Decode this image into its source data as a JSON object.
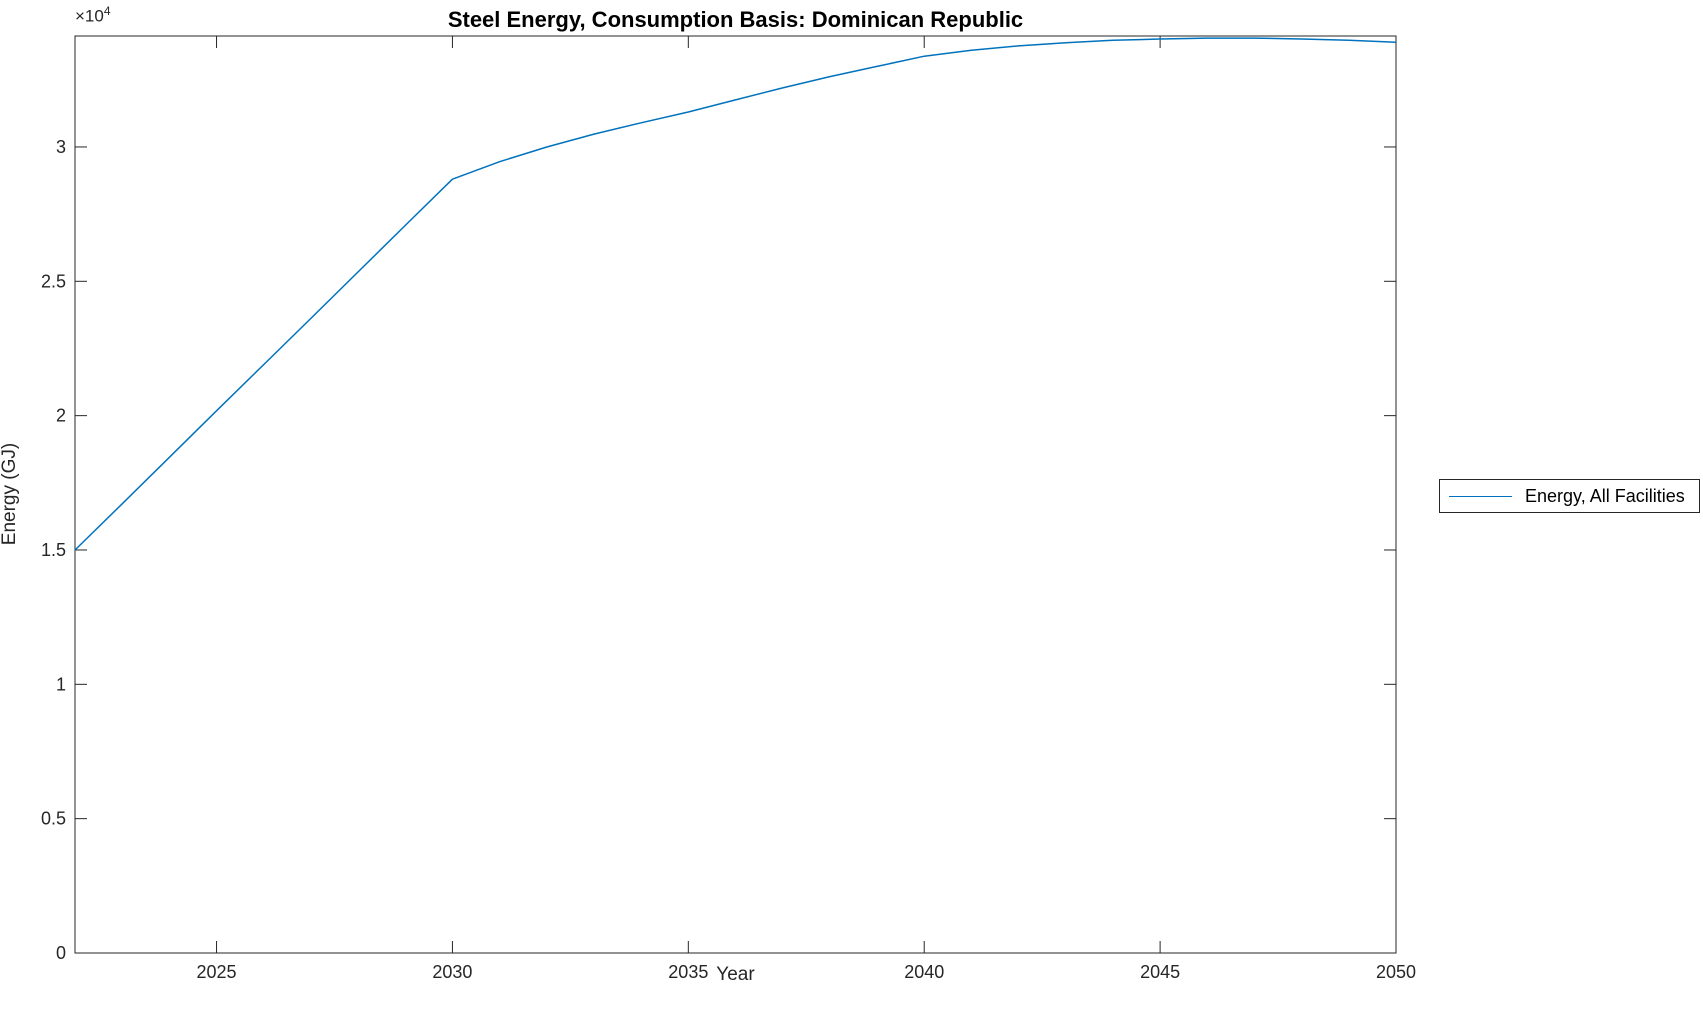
{
  "figure": {
    "title": "Steel Energy, Consumption Basis: Dominican Republic",
    "xlabel": "Year",
    "ylabel": "Energy (GJ)",
    "scale_prefix": "×10",
    "scale_exponent": "4"
  },
  "legend": {
    "entries": [
      {
        "label": "Energy, All Facilities",
        "color": "#0072BD"
      }
    ]
  },
  "colors": {
    "line": "#0072BD",
    "axis": "#262626",
    "background": "#ffffff"
  },
  "chart_data": {
    "type": "line",
    "title": "Steel Energy, Consumption Basis: Dominican Republic",
    "xlabel": "Year",
    "ylabel": "Energy (GJ)",
    "y_scale_note": "y tick labels are in units of 10^4 GJ",
    "xlim": [
      2022,
      2050
    ],
    "ylim": [
      0,
      34130
    ],
    "grid": false,
    "legend_position": "right-outside",
    "x": [
      2022,
      2023,
      2024,
      2025,
      2026,
      2027,
      2028,
      2029,
      2030,
      2031,
      2032,
      2033,
      2034,
      2035,
      2036,
      2037,
      2038,
      2039,
      2040,
      2041,
      2042,
      2043,
      2044,
      2045,
      2046,
      2047,
      2048,
      2049,
      2050
    ],
    "series": [
      {
        "name": "Energy, All Facilities",
        "color": "#0072BD",
        "values": [
          15000,
          16720,
          18450,
          20180,
          21900,
          23620,
          25350,
          27080,
          28800,
          29450,
          30000,
          30480,
          30900,
          31300,
          31750,
          32200,
          32620,
          33000,
          33380,
          33600,
          33760,
          33880,
          33970,
          34020,
          34050,
          34050,
          34020,
          33970,
          33900
        ]
      }
    ],
    "x_ticks": [
      {
        "value": 2025,
        "label": "2025"
      },
      {
        "value": 2030,
        "label": "2030"
      },
      {
        "value": 2035,
        "label": "2035"
      },
      {
        "value": 2040,
        "label": "2040"
      },
      {
        "value": 2045,
        "label": "2045"
      },
      {
        "value": 2050,
        "label": "2050"
      }
    ],
    "y_ticks": [
      {
        "value": 0,
        "label": "0"
      },
      {
        "value": 5000,
        "label": "0.5"
      },
      {
        "value": 10000,
        "label": "1"
      },
      {
        "value": 15000,
        "label": "1.5"
      },
      {
        "value": 20000,
        "label": "2"
      },
      {
        "value": 25000,
        "label": "2.5"
      },
      {
        "value": 30000,
        "label": "3"
      }
    ]
  }
}
